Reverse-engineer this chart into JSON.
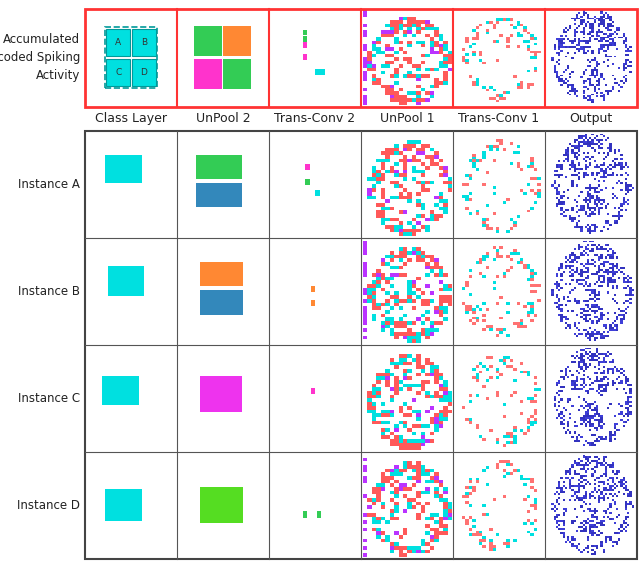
{
  "col_labels": [
    "Class Layer",
    "UnPool 2",
    "Trans-Conv 2",
    "UnPool 1",
    "Trans-Conv 1",
    "Output"
  ],
  "row_label_top": "Accumulated\nDecoded Spiking\nActivity",
  "row_labels_instances": [
    "Instance A",
    "Instance B",
    "Instance C",
    "Instance D"
  ],
  "top_border_color": "#ff3333",
  "instance_grid_color": "#555555",
  "label_fontsize": 9,
  "col_label_fontsize": 9,
  "colors": {
    "cyan": "#00e0e0",
    "red": "#ff5555",
    "purple": "#bb33ff",
    "orange": "#ff8833",
    "green": "#33cc55",
    "magenta": "#ff33cc",
    "steel_blue": "#3388bb",
    "dark_blue": "#2233bb",
    "lime": "#66dd22"
  }
}
